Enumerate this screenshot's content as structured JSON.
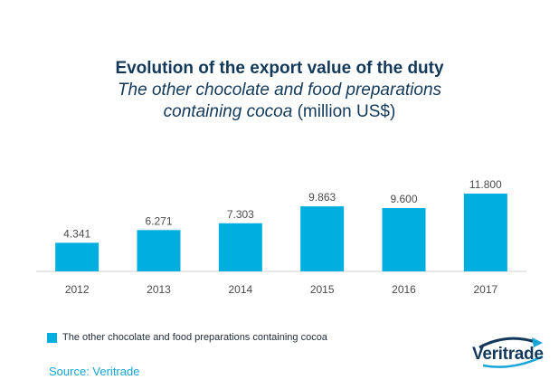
{
  "chart_data": {
    "type": "bar",
    "title": "Evolution of the export value of the duty",
    "subtitle_italic_1": "The other chocolate and food preparations",
    "subtitle_italic_2": "containing cocoa",
    "subtitle_unit": "(million US$)",
    "categories": [
      "2012",
      "2013",
      "2014",
      "2015",
      "2016",
      "2017"
    ],
    "series": [
      {
        "name": "The other chocolate and food preparations containing cocoa",
        "values": [
          4.341,
          6.271,
          7.303,
          9.863,
          9.6,
          11.8
        ],
        "labels": [
          "4.341",
          "6.271",
          "7.303",
          "9.863",
          "9.600",
          "11.800"
        ]
      }
    ],
    "ylim": [
      0,
      13
    ],
    "grid": false,
    "legend_position": "bottom-left",
    "bar_color": "#00aedf"
  },
  "source": "Source: Veritrade",
  "logo_text": "Veritrade",
  "colors": {
    "title": "#13395a",
    "bar": "#00aedf",
    "source": "#16a6d8",
    "axis": "#d3d3d3"
  }
}
